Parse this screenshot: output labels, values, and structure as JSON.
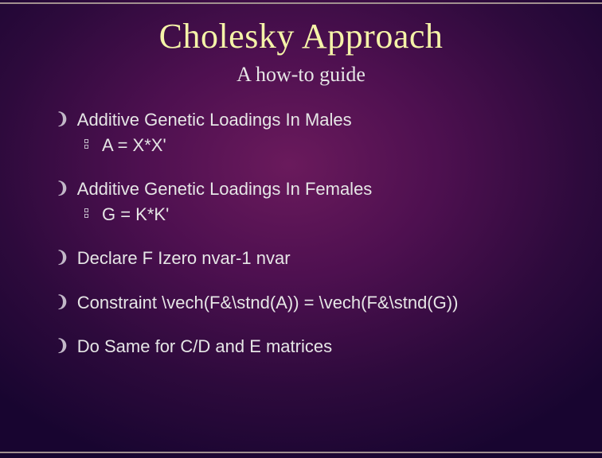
{
  "colors": {
    "title": "#f5f3a8",
    "body_text": "#e6e6e6",
    "bullet": "#c2b8c8",
    "rule": "#a29090",
    "bg_gradient": [
      "#6a1a5c",
      "#4e1050",
      "#2d0a3c",
      "#180530"
    ]
  },
  "title": "Cholesky Approach",
  "subtitle": "A how-to guide",
  "items": [
    {
      "text": "Additive Genetic Loadings In Males",
      "sub": "A = X*X'"
    },
    {
      "text": "Additive Genetic Loadings In Females",
      "sub": "G = K*K'"
    },
    {
      "text": "Declare F  Izero nvar-1 nvar",
      "sub": null
    },
    {
      "text": "Constraint \\vech(F&\\stnd(A)) = \\vech(F&\\stnd(G))",
      "sub": null
    },
    {
      "text": "Do Same for C/D and E matrices",
      "sub": null
    }
  ]
}
